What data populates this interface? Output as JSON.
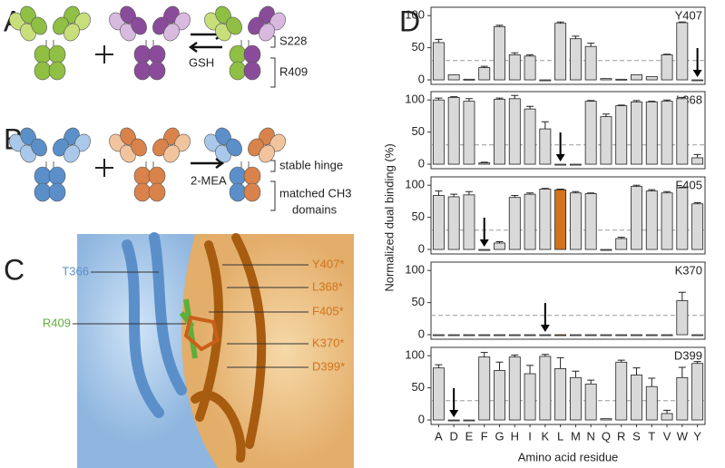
{
  "panels": {
    "a": "A",
    "b": "B",
    "c": "C",
    "d": "D"
  },
  "panel_a": {
    "hinge": "S228",
    "reagent": "GSH",
    "ch3": "R409"
  },
  "panel_b": {
    "hinge": "stable hinge",
    "reagent": "2-MEA",
    "ch3_line1": "matched CH3",
    "ch3_line2": "domains"
  },
  "panel_c": {
    "left": [
      "T366",
      "R409"
    ],
    "right": [
      "Y407*",
      "L368*",
      "F405*",
      "K370*",
      "D399*"
    ]
  },
  "axes": {
    "ylabel": "Normalized dual binding (%)",
    "xlabel": "Amino acid residue"
  },
  "chart_data": [
    {
      "type": "bar",
      "title": "Y407",
      "color": "#d9d9d9",
      "highlight_color": "#d0731c",
      "threshold": 30,
      "marked": "Y",
      "values": [
        58,
        8,
        1,
        19,
        83,
        39,
        37,
        -1,
        88,
        64,
        52,
        2,
        1,
        8,
        5,
        39,
        89,
        0
      ],
      "errors": [
        5,
        0,
        0,
        2,
        2,
        3,
        2,
        0,
        2,
        4,
        5,
        0,
        0,
        0,
        0,
        1,
        1,
        0
      ],
      "ylim": [
        -7,
        113
      ],
      "yticks": [
        0,
        50,
        100
      ]
    },
    {
      "type": "bar",
      "title": "L368",
      "color": "#d9d9d9",
      "highlight_color": "#d0731c",
      "threshold": 30,
      "marked": "L",
      "values": [
        100,
        104,
        98,
        2,
        101,
        102,
        86,
        55,
        -1,
        -1,
        98,
        74,
        91,
        97,
        97,
        98,
        102,
        10
      ],
      "errors": [
        3,
        1,
        4,
        1,
        2,
        5,
        4,
        11,
        0,
        0,
        1,
        4,
        1,
        2,
        1,
        2,
        2,
        5
      ],
      "ylim": [
        -7,
        113
      ],
      "yticks": [
        0,
        50,
        100
      ]
    },
    {
      "type": "bar",
      "title": "F405",
      "color": "#d9d9d9",
      "highlight_color": "#d0731c",
      "threshold": 30,
      "marked": "F",
      "highlight": "L",
      "values": [
        84,
        82,
        85,
        0,
        10,
        81,
        86,
        94,
        93,
        88,
        87,
        0,
        17,
        98,
        91,
        88,
        96,
        71
      ],
      "errors": [
        7,
        4,
        5,
        0,
        2,
        3,
        2,
        1,
        1,
        2,
        1,
        0,
        2,
        2,
        2,
        2,
        1,
        2
      ],
      "ylim": [
        -7,
        113
      ],
      "yticks": [
        0,
        50,
        100
      ]
    },
    {
      "type": "bar",
      "title": "K370",
      "color": "#d9d9d9",
      "highlight_color": "#d0731c",
      "threshold": 30,
      "marked": "K",
      "highlight": "L",
      "values": [
        -1,
        -1,
        -1,
        -1,
        -1,
        -1,
        -1,
        -1,
        -1,
        -1,
        -1,
        -1,
        -1,
        -1,
        -1,
        -1,
        53,
        -1
      ],
      "errors": [
        0,
        0,
        0,
        0,
        0,
        0,
        0,
        0,
        0,
        0,
        0,
        0,
        0,
        0,
        0,
        0,
        13,
        0
      ],
      "ylim": [
        -7,
        113
      ],
      "yticks": [
        0,
        50,
        100
      ]
    },
    {
      "type": "bar",
      "title": "D399",
      "color": "#d9d9d9",
      "highlight_color": "#d0731c",
      "threshold": 30,
      "marked": "D",
      "categories": [
        "A",
        "D",
        "E",
        "F",
        "G",
        "H",
        "I",
        "K",
        "L",
        "M",
        "N",
        "Q",
        "R",
        "S",
        "T",
        "V",
        "W",
        "Y"
      ],
      "values": [
        81,
        -1,
        -1,
        98,
        77,
        98,
        72,
        99,
        80,
        66,
        56,
        2,
        90,
        70,
        52,
        10,
        66,
        88
      ],
      "errors": [
        5,
        0,
        0,
        7,
        13,
        3,
        13,
        3,
        17,
        10,
        6,
        0,
        3,
        11,
        13,
        5,
        16,
        3
      ],
      "ylim": [
        -7,
        113
      ],
      "yticks": [
        0,
        50,
        100
      ]
    }
  ]
}
